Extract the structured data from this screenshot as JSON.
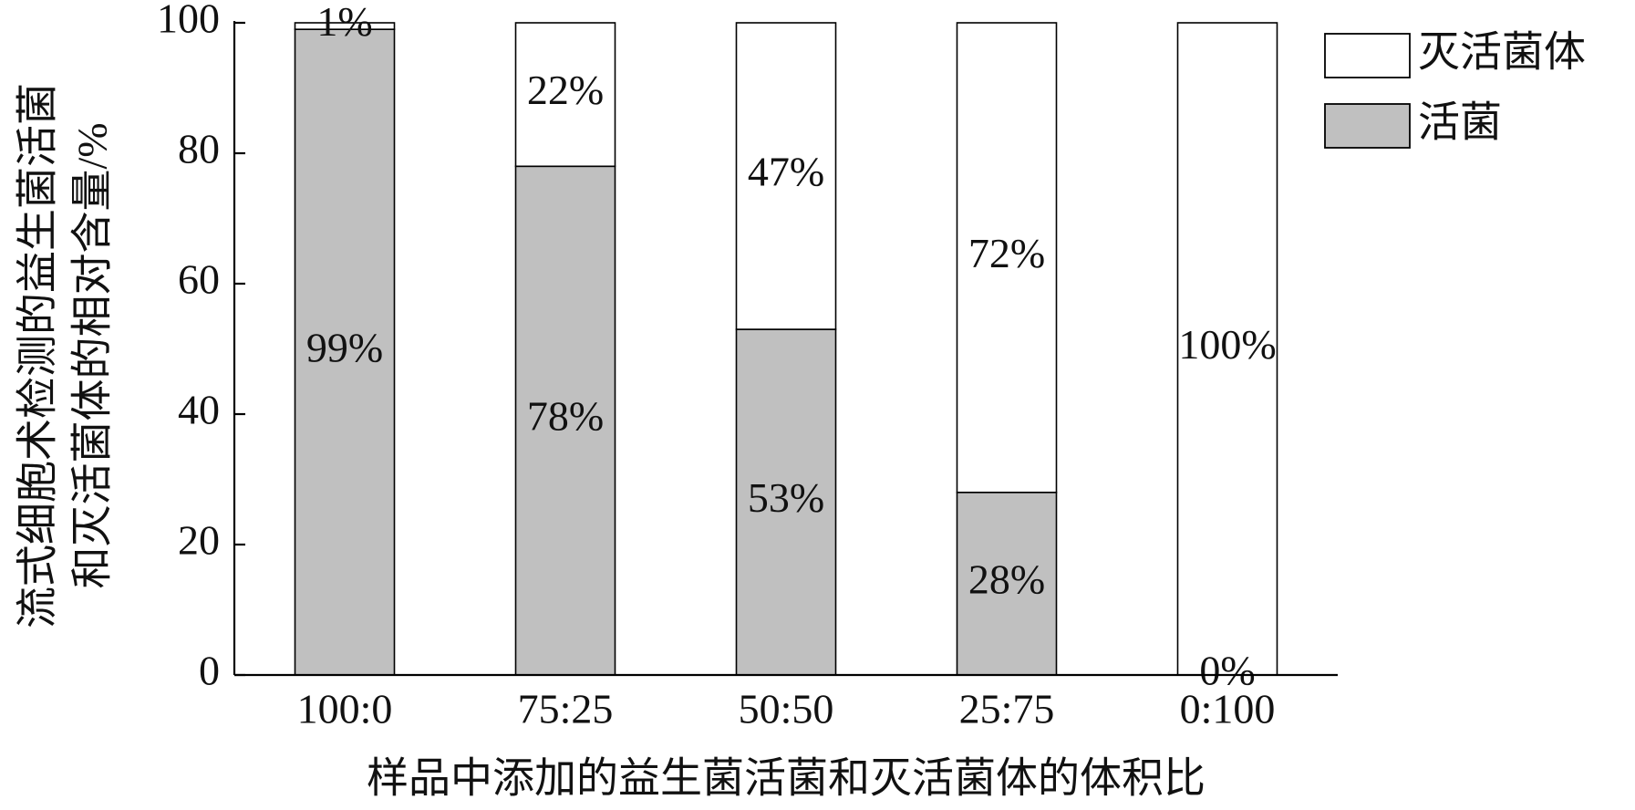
{
  "chart_data": {
    "type": "stacked_bar",
    "xlabel": "样品中添加的益生菌活菌和灭活菌体的体积比",
    "ylabel": [
      "流式细胞术检测的益生菌活菌",
      "和灭活菌体的相对含量/%"
    ],
    "categories": [
      "100:0",
      "75:25",
      "50:50",
      "25:75",
      "0:100"
    ],
    "series": [
      {
        "name": "活菌",
        "color": "#c0c0c0",
        "values": [
          99,
          78,
          53,
          28,
          0
        ],
        "value_labels": [
          "99%",
          "78%",
          "53%",
          "28%",
          "0%"
        ]
      },
      {
        "name": "灭活菌体",
        "color": "#ffffff",
        "values": [
          1,
          22,
          47,
          72,
          100
        ],
        "value_labels": [
          "1%",
          "22%",
          "47%",
          "72%",
          "100%"
        ]
      }
    ],
    "ylim": [
      0,
      100
    ],
    "yticks": [
      0,
      20,
      40,
      60,
      80,
      100
    ],
    "legend": "upper right"
  }
}
